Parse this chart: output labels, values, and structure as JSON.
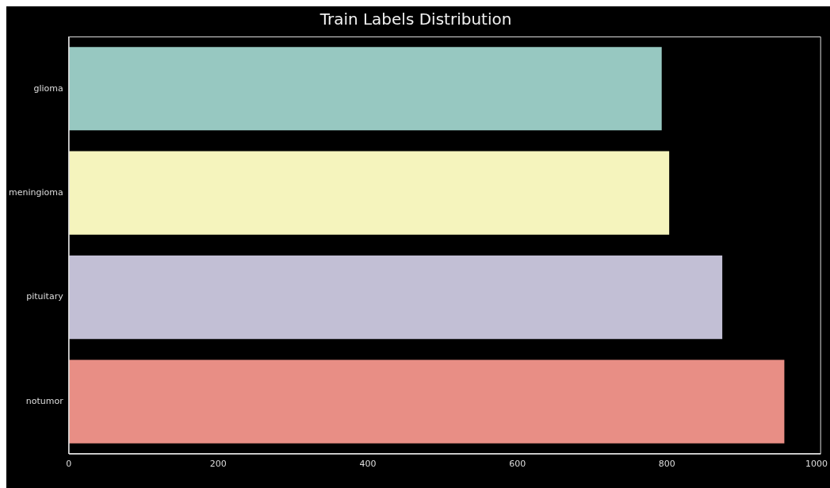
{
  "chart_data": {
    "type": "bar",
    "orientation": "horizontal",
    "title": "Train Labels Distribution",
    "categories": [
      "glioma",
      "meningioma",
      "pituitary",
      "notumor"
    ],
    "values": [
      793,
      803,
      874,
      957
    ],
    "colors": [
      "#97c8c1",
      "#f5f4bd",
      "#c2bfd5",
      "#e88e85"
    ],
    "xlim": [
      0,
      1005
    ],
    "xticks": [
      0,
      200,
      400,
      600,
      800,
      1000
    ],
    "grid": false,
    "legend": false
  }
}
